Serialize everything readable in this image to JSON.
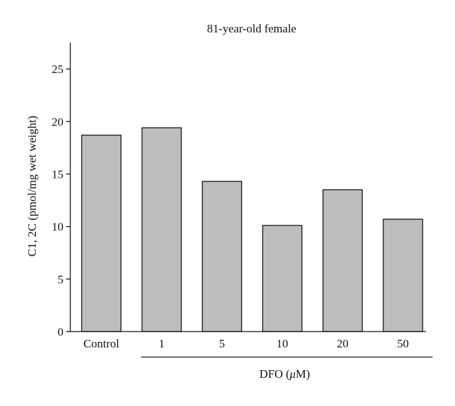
{
  "chart_data": {
    "type": "bar",
    "title": "81-year-old female",
    "ylabel": "C1, 2C (pmol/mg wet weight)",
    "xlabel": "DFO (μM)",
    "xlabel_prefix": "DFO (",
    "xlabel_unit_italic": "μ",
    "xlabel_suffix": "M)",
    "categories": [
      "Control",
      "1",
      "5",
      "10",
      "20",
      "50"
    ],
    "values": [
      18.7,
      19.4,
      14.3,
      10.1,
      13.5,
      10.7
    ],
    "ylim": [
      0,
      27.5
    ],
    "yticks": [
      0,
      5,
      10,
      15,
      20,
      25
    ],
    "ytick_labels": [
      "0",
      "5",
      "10",
      "15",
      "20",
      "25"
    ],
    "grid": false,
    "legend": "none",
    "bar_color": "#bdbdbd",
    "bar_edge_color": "#111111",
    "bracket_under": [
      "1",
      "5",
      "10",
      "20",
      "50"
    ]
  }
}
